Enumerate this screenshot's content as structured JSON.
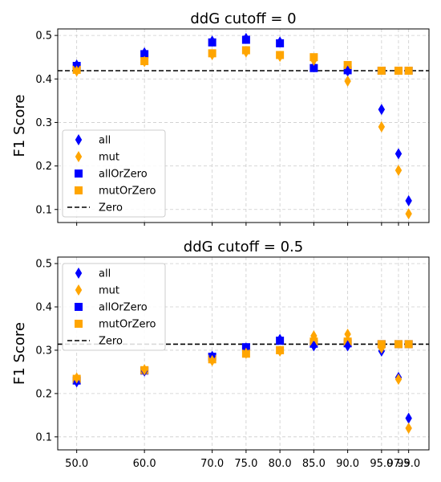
{
  "chart_data": [
    {
      "type": "scatter",
      "title": "ddG cutoff = 0",
      "ylabel": "F1 Score",
      "xlabel": "",
      "x": [
        50.0,
        60.0,
        70.0,
        75.0,
        80.0,
        85.0,
        90.0,
        95.0,
        97.5,
        99.0
      ],
      "x_tick_labels": [
        "",
        "",
        "",
        "",
        "",
        "",
        "",
        "",
        "",
        ""
      ],
      "ylim": [
        0.07,
        0.515
      ],
      "y_ticks": [
        0.1,
        0.2,
        0.3,
        0.4,
        0.5
      ],
      "y_tick_labels": [
        "0.1",
        "0.2",
        "0.3",
        "0.4",
        "0.5"
      ],
      "grid": true,
      "legend_position": "lower-left",
      "zero_line": 0.419,
      "series": [
        {
          "name": "all",
          "marker": "diamond",
          "color": "#0000ff",
          "values": [
            0.432,
            0.46,
            0.487,
            0.493,
            0.485,
            0.428,
            0.418,
            0.33,
            0.228,
            0.12
          ]
        },
        {
          "name": "mut",
          "marker": "diamond",
          "color": "#ffa500",
          "values": [
            0.418,
            0.44,
            0.456,
            0.462,
            0.452,
            0.443,
            0.395,
            0.29,
            0.19,
            0.09
          ]
        },
        {
          "name": "allOrZero",
          "marker": "square",
          "color": "#0000ff",
          "values": [
            0.43,
            0.457,
            0.484,
            0.49,
            0.482,
            0.425,
            0.42,
            0.419,
            0.419,
            0.419
          ]
        },
        {
          "name": "mutOrZero",
          "marker": "square",
          "color": "#ffa500",
          "values": [
            0.421,
            0.441,
            0.459,
            0.466,
            0.455,
            0.45,
            0.432,
            0.419,
            0.419,
            0.419
          ]
        },
        {
          "name": "Zero",
          "marker": "dashed-line",
          "color": "#000000",
          "values": [
            0.419
          ]
        }
      ]
    },
    {
      "type": "scatter",
      "title": "ddG cutoff = 0.5",
      "ylabel": "F1 Score",
      "xlabel": "",
      "x": [
        50.0,
        60.0,
        70.0,
        75.0,
        80.0,
        85.0,
        90.0,
        95.0,
        97.5,
        99.0
      ],
      "x_tick_labels": [
        "50.0",
        "60.0",
        "70.0",
        "75.0",
        "80.0",
        "85.0",
        "90.0",
        "95.0",
        "97.5",
        "99.0"
      ],
      "ylim": [
        0.07,
        0.515
      ],
      "y_ticks": [
        0.1,
        0.2,
        0.3,
        0.4,
        0.5
      ],
      "y_tick_labels": [
        "0.1",
        "0.2",
        "0.3",
        "0.4",
        "0.5"
      ],
      "grid": true,
      "legend_position": "upper-left",
      "zero_line": 0.314,
      "series": [
        {
          "name": "all",
          "marker": "diamond",
          "color": "#0000ff",
          "values": [
            0.227,
            0.252,
            0.286,
            0.305,
            0.325,
            0.31,
            0.31,
            0.298,
            0.237,
            0.143
          ]
        },
        {
          "name": "mut",
          "marker": "diamond",
          "color": "#ffa500",
          "values": [
            0.236,
            0.255,
            0.276,
            0.293,
            0.298,
            0.333,
            0.337,
            0.305,
            0.233,
            0.12
          ]
        },
        {
          "name": "allOrZero",
          "marker": "square",
          "color": "#0000ff",
          "values": [
            0.23,
            0.253,
            0.285,
            0.307,
            0.322,
            0.315,
            0.316,
            0.314,
            0.314,
            0.314
          ]
        },
        {
          "name": "mutOrZero",
          "marker": "square",
          "color": "#ffa500",
          "values": [
            0.234,
            0.254,
            0.279,
            0.292,
            0.3,
            0.32,
            0.32,
            0.314,
            0.314,
            0.314
          ]
        },
        {
          "name": "Zero",
          "marker": "dashed-line",
          "color": "#000000",
          "values": [
            0.314
          ]
        }
      ]
    }
  ]
}
